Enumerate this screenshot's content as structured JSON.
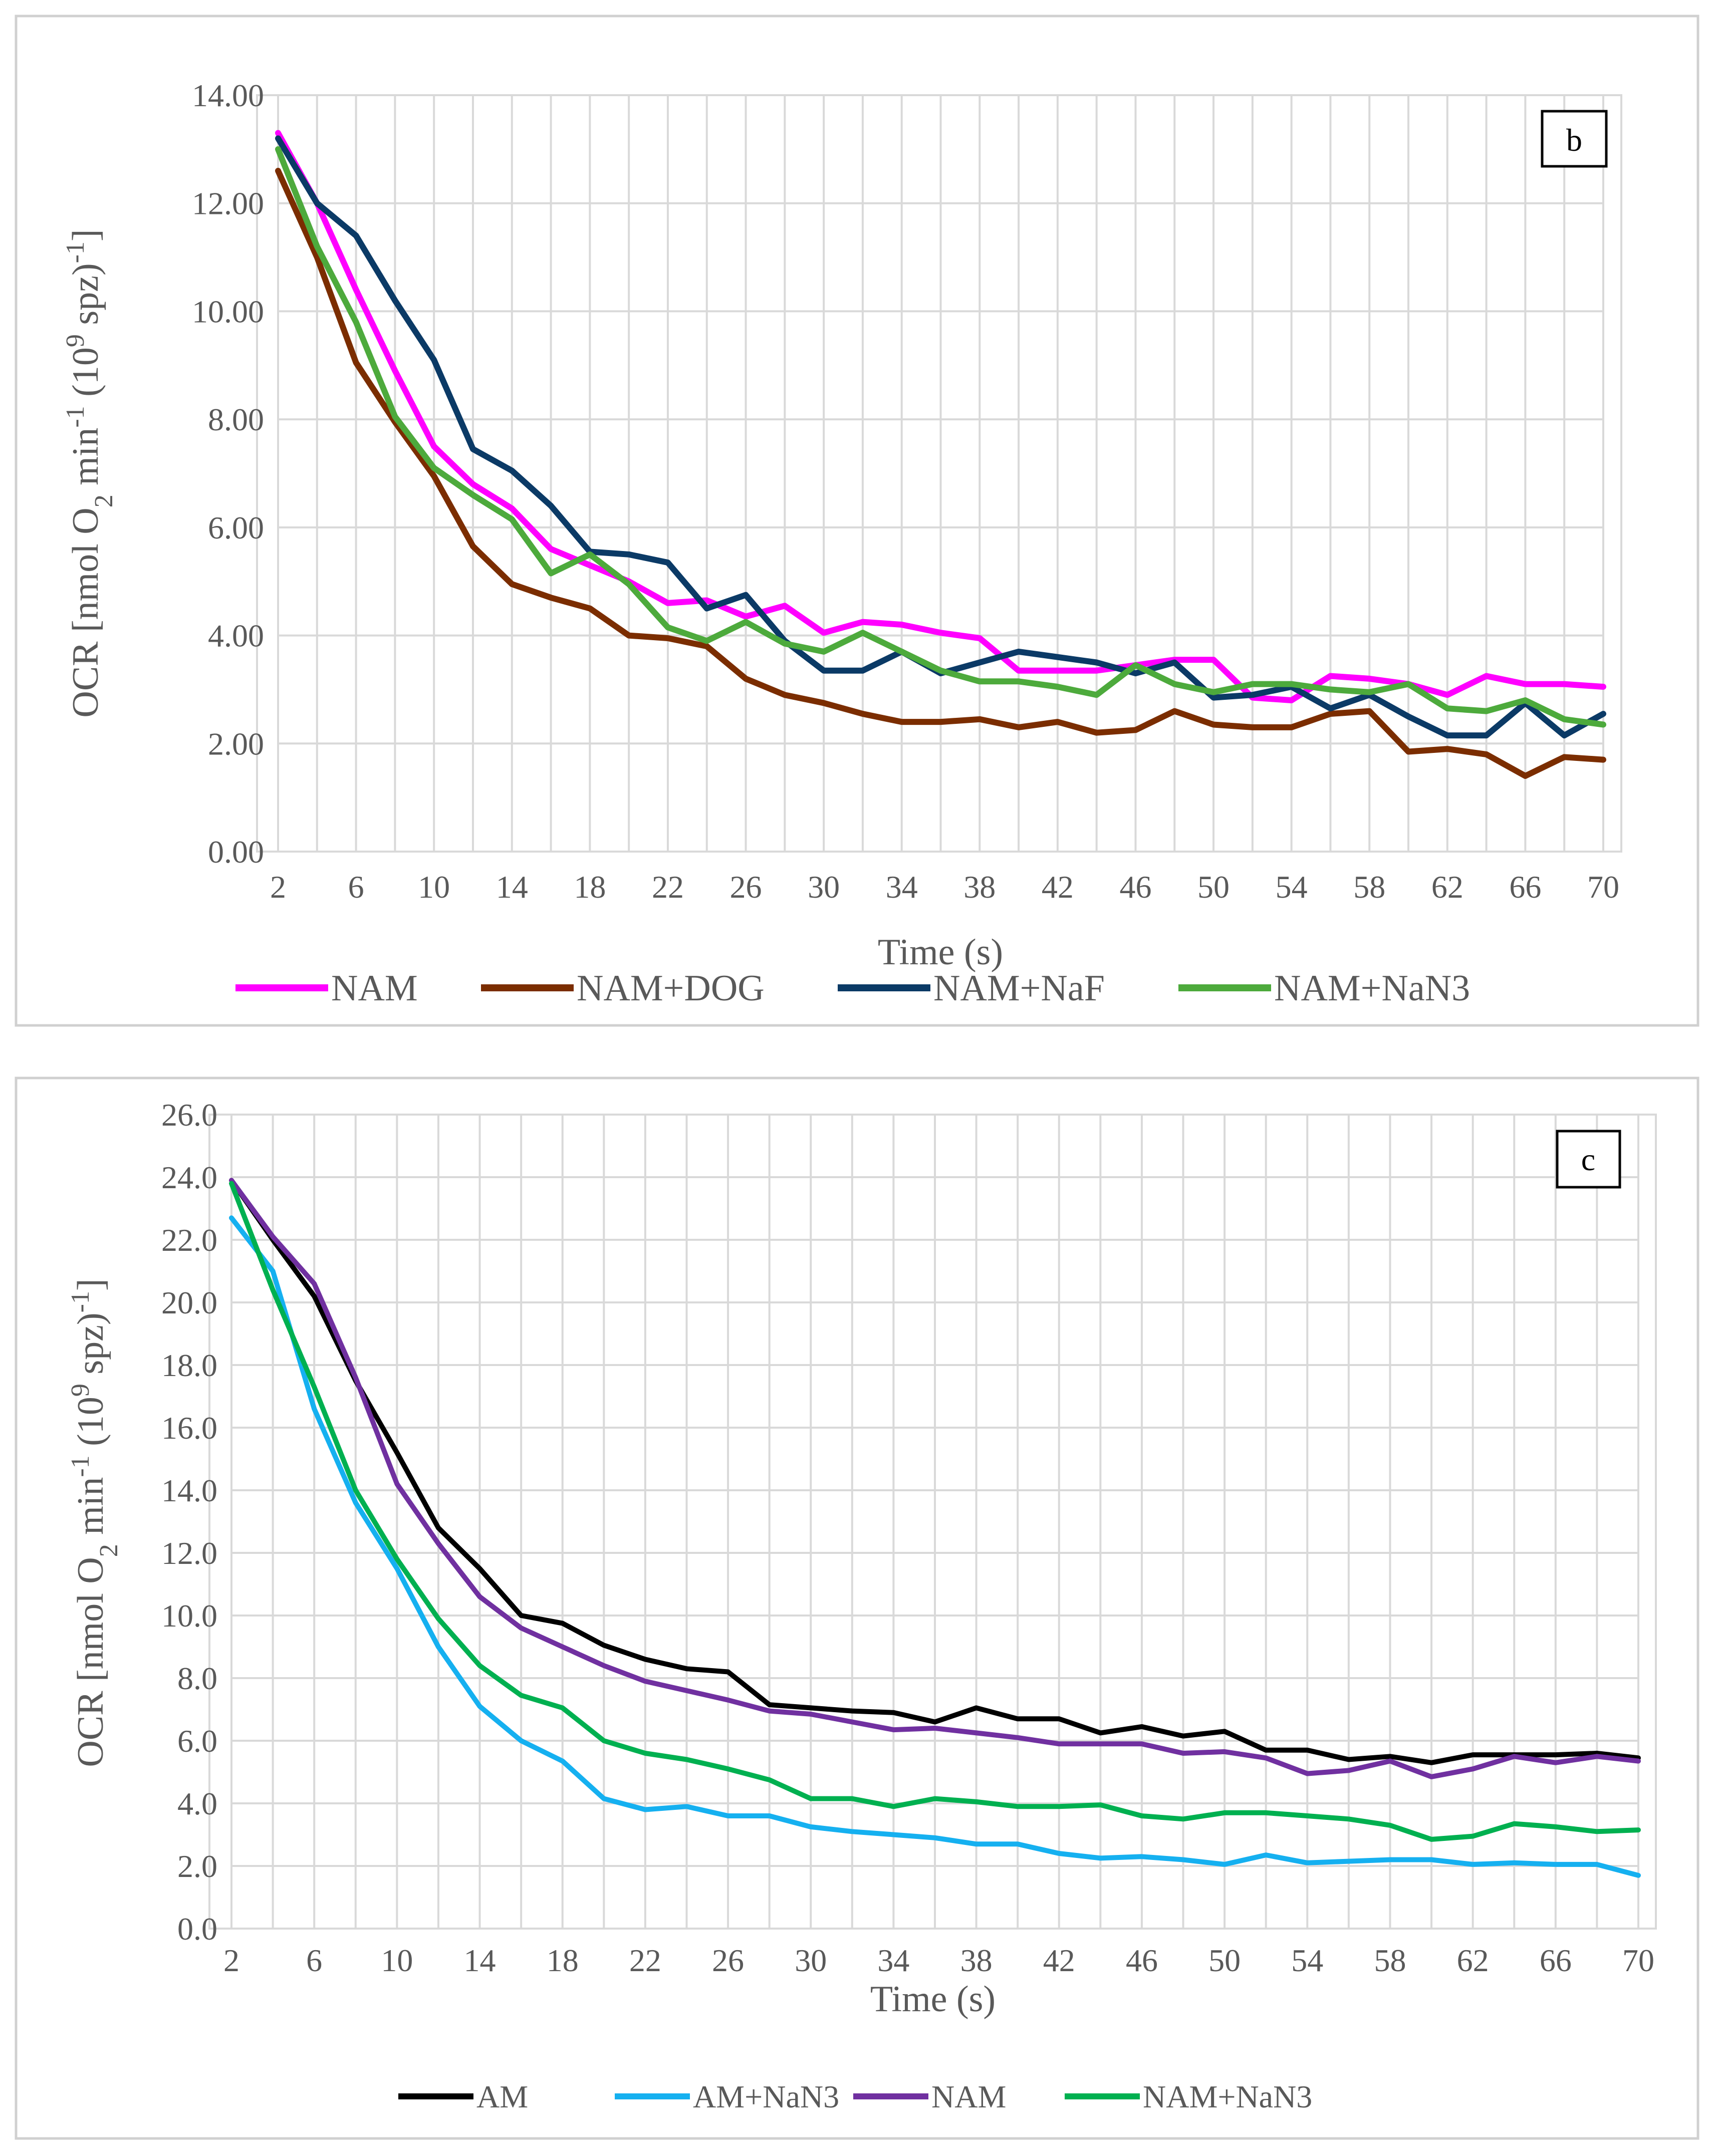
{
  "chart_data": [
    {
      "type": "line",
      "panel_label": "b",
      "title": "",
      "xlabel": "Time (s)",
      "ylabel": "OCR [nmol O₂ min⁻¹ (10⁹ spz)⁻¹]",
      "ylabel_parts": [
        "OCR [nmol O",
        "2",
        " min",
        "-1",
        " (10",
        "9",
        " spz)",
        "-1",
        "]"
      ],
      "ylim": [
        0,
        14
      ],
      "y_ticks": [
        "0.00",
        "2.00",
        "4.00",
        "6.00",
        "8.00",
        "10.00",
        "12.00",
        "14.00"
      ],
      "x": [
        2,
        4,
        6,
        8,
        10,
        12,
        14,
        16,
        18,
        20,
        22,
        24,
        26,
        28,
        30,
        32,
        34,
        36,
        38,
        40,
        42,
        44,
        46,
        48,
        50,
        52,
        54,
        56,
        58,
        60,
        62,
        64,
        66,
        68,
        70
      ],
      "x_tick_labels": [
        "2",
        "6",
        "10",
        "14",
        "18",
        "22",
        "26",
        "30",
        "34",
        "38",
        "42",
        "46",
        "50",
        "54",
        "58",
        "62",
        "66",
        "70"
      ],
      "grid": true,
      "legend_position": "bottom",
      "series": [
        {
          "name": "NAM",
          "color": "#ff00ff",
          "values": [
            13.3,
            12.0,
            10.4,
            8.9,
            7.5,
            6.8,
            6.35,
            5.6,
            5.3,
            5.0,
            4.6,
            4.65,
            4.35,
            4.55,
            4.05,
            4.25,
            4.2,
            4.05,
            3.95,
            3.35,
            3.35,
            3.35,
            3.45,
            3.55,
            3.55,
            2.85,
            2.8,
            3.25,
            3.2,
            3.1,
            2.9,
            3.25,
            3.1,
            3.1,
            3.05
          ]
        },
        {
          "name": "NAM+DOG",
          "color": "#7b2d00",
          "values": [
            12.6,
            11.0,
            9.05,
            7.95,
            6.95,
            5.65,
            4.95,
            4.7,
            4.5,
            4.0,
            3.95,
            3.8,
            3.2,
            2.9,
            2.75,
            2.55,
            2.4,
            2.4,
            2.45,
            2.3,
            2.4,
            2.2,
            2.25,
            2.6,
            2.35,
            2.3,
            2.3,
            2.55,
            2.6,
            1.85,
            1.9,
            1.8,
            1.4,
            1.75,
            1.7
          ]
        },
        {
          "name": "NAM+NaF",
          "color": "#0b3a66",
          "values": [
            13.2,
            12.0,
            11.4,
            10.2,
            9.1,
            7.45,
            7.05,
            6.4,
            5.55,
            5.5,
            5.35,
            4.5,
            4.75,
            3.9,
            3.35,
            3.35,
            3.7,
            3.3,
            3.5,
            3.7,
            3.6,
            3.5,
            3.3,
            3.5,
            2.85,
            2.9,
            3.05,
            2.65,
            2.9,
            2.5,
            2.15,
            2.15,
            2.75,
            2.15,
            2.55
          ]
        },
        {
          "name": "NAM+NaN3",
          "color": "#4daa3c",
          "values": [
            13.0,
            11.2,
            9.8,
            8.05,
            7.1,
            6.6,
            6.15,
            5.15,
            5.5,
            4.95,
            4.15,
            3.9,
            4.25,
            3.85,
            3.7,
            4.05,
            3.7,
            3.35,
            3.15,
            3.15,
            3.05,
            2.9,
            3.45,
            3.1,
            2.95,
            3.1,
            3.1,
            3.0,
            2.95,
            3.1,
            2.65,
            2.6,
            2.8,
            2.45,
            2.35
          ]
        }
      ]
    },
    {
      "type": "line",
      "panel_label": "c",
      "title": "",
      "xlabel": "Time (s)",
      "ylabel": "OCR [nmol O₂ min⁻¹ (10⁹ spz)⁻¹]",
      "ylabel_parts": [
        "OCR [nmol O",
        "2",
        " min",
        "-1",
        " (10",
        "9",
        " spz)",
        "-1",
        "]"
      ],
      "ylim": [
        0,
        26
      ],
      "y_ticks": [
        "0.0",
        "2.0",
        "4.0",
        "6.0",
        "8.0",
        "10.0",
        "12.0",
        "14.0",
        "16.0",
        "18.0",
        "20.0",
        "22.0",
        "24.0",
        "26.0"
      ],
      "x": [
        2,
        4,
        6,
        8,
        10,
        12,
        14,
        16,
        18,
        20,
        22,
        24,
        26,
        28,
        30,
        32,
        34,
        36,
        38,
        40,
        42,
        44,
        46,
        48,
        50,
        52,
        54,
        56,
        58,
        60,
        62,
        64,
        66,
        68,
        70
      ],
      "x_tick_labels": [
        "2",
        "6",
        "10",
        "14",
        "18",
        "22",
        "26",
        "30",
        "34",
        "38",
        "42",
        "46",
        "50",
        "54",
        "58",
        "62",
        "66",
        "70"
      ],
      "grid": true,
      "legend_position": "bottom",
      "series": [
        {
          "name": "AM",
          "color": "#000000",
          "values": [
            23.9,
            22.0,
            20.2,
            17.5,
            15.2,
            12.8,
            11.5,
            10.0,
            9.75,
            9.05,
            8.6,
            8.3,
            8.2,
            7.15,
            7.05,
            6.95,
            6.9,
            6.6,
            7.05,
            6.7,
            6.7,
            6.25,
            6.45,
            6.15,
            6.3,
            5.7,
            5.7,
            5.4,
            5.5,
            5.3,
            5.55,
            5.55,
            5.55,
            5.6,
            5.45
          ]
        },
        {
          "name": "AM+NaN3",
          "color": "#15b0f0",
          "values": [
            22.7,
            21.0,
            16.6,
            13.6,
            11.5,
            9.0,
            7.1,
            6.0,
            5.35,
            4.15,
            3.8,
            3.9,
            3.6,
            3.6,
            3.25,
            3.1,
            3.0,
            2.9,
            2.7,
            2.7,
            2.4,
            2.25,
            2.3,
            2.2,
            2.05,
            2.35,
            2.1,
            2.15,
            2.2,
            2.2,
            2.05,
            2.1,
            2.05,
            2.05,
            1.7
          ]
        },
        {
          "name": "NAM",
          "color": "#7030a0",
          "values": [
            23.9,
            22.1,
            20.6,
            17.6,
            14.2,
            12.3,
            10.6,
            9.6,
            9.0,
            8.4,
            7.9,
            7.6,
            7.3,
            6.95,
            6.85,
            6.6,
            6.35,
            6.4,
            6.25,
            6.1,
            5.9,
            5.9,
            5.9,
            5.6,
            5.65,
            5.45,
            4.95,
            5.05,
            5.35,
            4.85,
            5.1,
            5.5,
            5.3,
            5.5,
            5.35
          ]
        },
        {
          "name": "NAM+NaN3",
          "color": "#00b050",
          "values": [
            23.8,
            20.4,
            17.3,
            14.0,
            11.8,
            9.9,
            8.4,
            7.45,
            7.05,
            6.0,
            5.6,
            5.4,
            5.1,
            4.75,
            4.15,
            4.15,
            3.9,
            4.15,
            4.05,
            3.9,
            3.9,
            3.95,
            3.6,
            3.5,
            3.7,
            3.7,
            3.6,
            3.5,
            3.3,
            2.85,
            2.95,
            3.35,
            3.25,
            3.1,
            3.15
          ]
        }
      ]
    }
  ]
}
